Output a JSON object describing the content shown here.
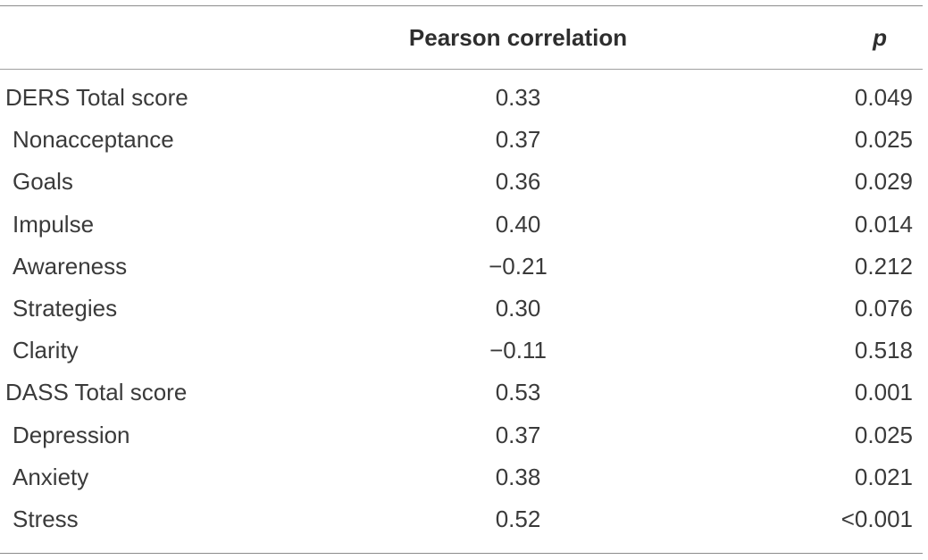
{
  "table": {
    "columns": {
      "variable": "",
      "correlation": "Pearson correlation",
      "p": "p"
    },
    "rows": [
      {
        "variable": "DERS Total score",
        "correlation": "0.33",
        "p": "0.049",
        "indent": false
      },
      {
        "variable": "Nonacceptance",
        "correlation": "0.37",
        "p": "0.025",
        "indent": true
      },
      {
        "variable": "Goals",
        "correlation": "0.36",
        "p": "0.029",
        "indent": true
      },
      {
        "variable": "Impulse",
        "correlation": "0.40",
        "p": "0.014",
        "indent": true
      },
      {
        "variable": "Awareness",
        "correlation": "−0.21",
        "p": "0.212",
        "indent": true
      },
      {
        "variable": "Strategies",
        "correlation": "0.30",
        "p": "0.076",
        "indent": true
      },
      {
        "variable": "Clarity",
        "correlation": "−0.11",
        "p": "0.518",
        "indent": true
      },
      {
        "variable": "DASS Total score",
        "correlation": "0.53",
        "p": "0.001",
        "indent": false
      },
      {
        "variable": "Depression",
        "correlation": "0.37",
        "p": "0.025",
        "indent": true
      },
      {
        "variable": "Anxiety",
        "correlation": "0.38",
        "p": "0.021",
        "indent": true
      },
      {
        "variable": "Stress",
        "correlation": "0.52",
        "p": "<0.001",
        "indent": true
      }
    ]
  }
}
